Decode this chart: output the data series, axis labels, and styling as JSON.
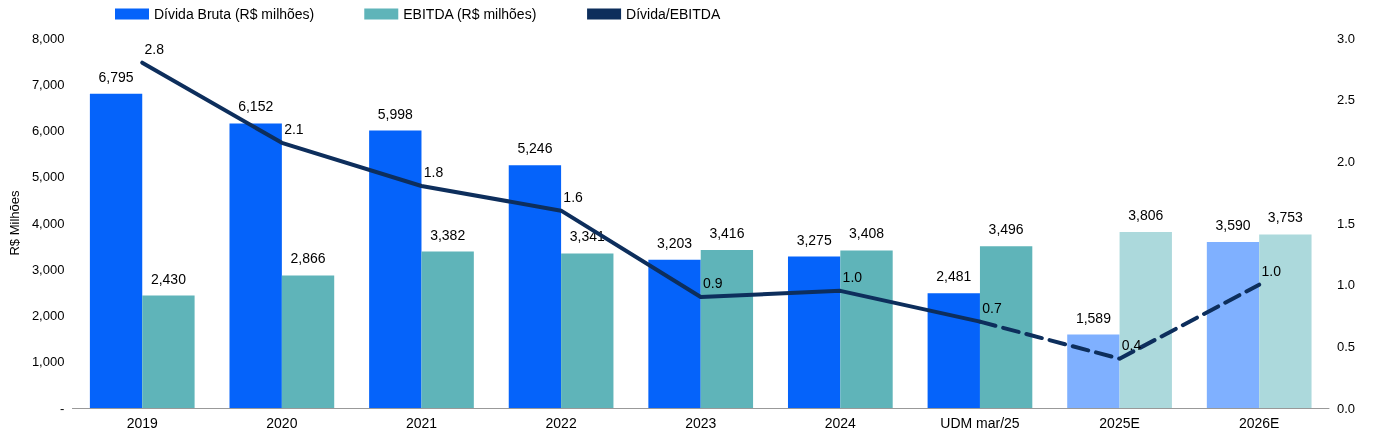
{
  "chart_data": {
    "type": "bar",
    "ylabel": "R$ Milhões",
    "legend": "top",
    "grid": false,
    "marker": "none",
    "categories": [
      "2019",
      "2020",
      "2021",
      "2022",
      "2023",
      "2024",
      "UDM mar/25",
      "2025E",
      "2026E"
    ],
    "ylim": [
      0,
      8000
    ],
    "yticks": [
      {
        "value": 0,
        "label": "-"
      },
      {
        "value": 1000,
        "label": "1,000"
      },
      {
        "value": 2000,
        "label": "2,000"
      },
      {
        "value": 3000,
        "label": "3,000"
      },
      {
        "value": 4000,
        "label": "4,000"
      },
      {
        "value": 5000,
        "label": "5,000"
      },
      {
        "value": 6000,
        "label": "6,000"
      },
      {
        "value": 7000,
        "label": "7,000"
      },
      {
        "value": 8000,
        "label": "8,000"
      }
    ],
    "y2lim": [
      0,
      3
    ],
    "y2ticks": [
      {
        "value": 0,
        "label": "0.0"
      },
      {
        "value": 0.5,
        "label": "0.5"
      },
      {
        "value": 1,
        "label": "1.0"
      },
      {
        "value": 1.5,
        "label": "1.5"
      },
      {
        "value": 2,
        "label": "2.0"
      },
      {
        "value": 2.5,
        "label": "2.5"
      },
      {
        "value": 3,
        "label": "3.0"
      }
    ],
    "series": [
      {
        "name": "Dívida Bruta (R$ milhões)",
        "color": "#0563fa",
        "colors": [
          "#0563fa",
          "#0563fa",
          "#0563fa",
          "#0563fa",
          "#0563fa",
          "#0563fa",
          "#0563fa",
          "#7fb0ff",
          "#7fb0ff"
        ],
        "values": [
          6795,
          6152,
          5998,
          5246,
          3203,
          3275,
          2481,
          1589,
          3590
        ],
        "value_labels": [
          "6,795",
          "6,152",
          "5,998",
          "5,246",
          "3,203",
          "3,275",
          "2,481",
          "1,589",
          "3,590"
        ]
      },
      {
        "name": "EBITDA (R$ milhões)",
        "color": "#5fb4b9",
        "colors": [
          "#5fb4b9",
          "#5fb4b9",
          "#5fb4b9",
          "#5fb4b9",
          "#5fb4b9",
          "#5fb4b9",
          "#5fb4b9",
          "#acd9dc",
          "#acd9dc"
        ],
        "values": [
          2430,
          2866,
          3382,
          3341,
          3416,
          3408,
          3496,
          3806,
          3753
        ],
        "value_labels": [
          "2,430",
          "2,866",
          "3,382",
          "3,341",
          "3,416",
          "3,408",
          "3,496",
          "3,806",
          "3,753"
        ]
      },
      {
        "name": "Dívida/EBITDA",
        "type": "line",
        "axis": "y2",
        "color": "#0d2e5c",
        "line_style": "solid",
        "values": [
          2.8,
          2.15,
          1.8,
          1.6,
          0.9,
          0.95,
          0.7,
          null,
          null
        ],
        "value_labels": [
          "2.8",
          "2.1",
          "1.8",
          "1.6",
          "0.9",
          "1.0",
          "0.7",
          null,
          null
        ]
      },
      {
        "type": "line",
        "axis": "y2",
        "color": "#0d2e5c",
        "line_style": "dashed",
        "values": [
          null,
          null,
          null,
          null,
          null,
          null,
          0.7,
          0.4,
          1.0
        ],
        "value_labels": [
          null,
          null,
          null,
          null,
          null,
          null,
          null,
          "0.4",
          "1.0"
        ]
      }
    ]
  }
}
